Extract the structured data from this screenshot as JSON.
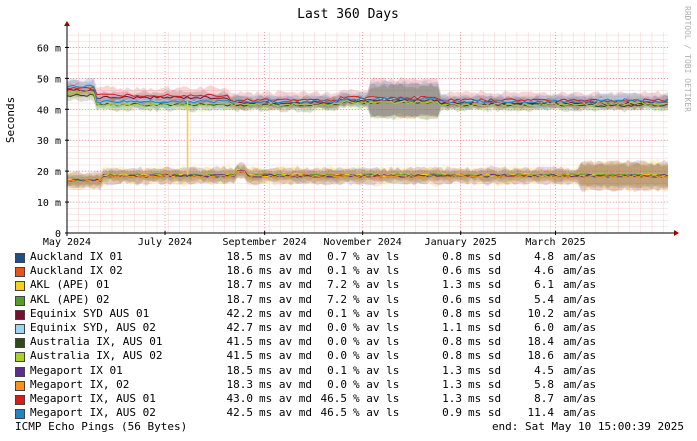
{
  "chart_data": {
    "type": "line",
    "title": "Last 360 Days",
    "ylabel": "Seconds",
    "xlabel": "",
    "ylim": [
      0,
      65
    ],
    "ytick_labels": [
      "0",
      "10 m",
      "20 m",
      "30 m",
      "40 m",
      "50 m",
      "60 m"
    ],
    "ytick_values": [
      0,
      10,
      20,
      30,
      40,
      50,
      60
    ],
    "xtick_labels": [
      "May 2024",
      "July 2024",
      "September 2024",
      "November 2024",
      "January 2025",
      "March 2025"
    ],
    "xtick_dates": [
      "2024-05-01",
      "2024-07-01",
      "2024-09-01",
      "2024-11-01",
      "2025-01-01",
      "2025-03-01"
    ],
    "x_range": [
      "2024-05-01",
      "2025-05-10"
    ],
    "grid": true,
    "watermark": "RRDTOOL / TOBI OETIKER",
    "series": [
      {
        "name": "Auckland IX 01",
        "color": "#1f4e8c",
        "median": "18.5",
        "loss": "0.7",
        "sd": "0.8",
        "am": "4.8"
      },
      {
        "name": "Auckland IX 02",
        "color": "#e8541c",
        "median": "18.6",
        "loss": "0.1",
        "sd": "0.6",
        "am": "4.6"
      },
      {
        "name": "AKL (APE) 01",
        "color": "#f2d21e",
        "median": "18.7",
        "loss": "7.2",
        "sd": "1.3",
        "am": "6.1"
      },
      {
        "name": "AKL (APE) 02",
        "color": "#5a9a2c",
        "median": "18.7",
        "loss": "7.2",
        "sd": "0.6",
        "am": "5.4"
      },
      {
        "name": "Equinix SYD AUS 01",
        "color": "#7a1030",
        "median": "42.2",
        "loss": "0.1",
        "sd": "0.8",
        "am": "10.2"
      },
      {
        "name": "Equinix SYD, AUS 02",
        "color": "#9fd3f2",
        "median": "42.7",
        "loss": "0.0",
        "sd": "1.1",
        "am": "6.0"
      },
      {
        "name": "Australia IX, AUS 01",
        "color": "#2e4a16",
        "median": "41.5",
        "loss": "0.0",
        "sd": "0.8",
        "am": "18.4"
      },
      {
        "name": "Australia IX, AUS 02",
        "color": "#a9cf2a",
        "median": "41.5",
        "loss": "0.0",
        "sd": "0.8",
        "am": "18.6"
      },
      {
        "name": "Megaport IX 01",
        "color": "#5b2d8e",
        "median": "18.5",
        "loss": "0.1",
        "sd": "1.3",
        "am": "4.5"
      },
      {
        "name": "Megaport IX, 02",
        "color": "#f2951c",
        "median": "18.3",
        "loss": "0.0",
        "sd": "1.3",
        "am": "5.8"
      },
      {
        "name": "Megaport IX, AUS 01",
        "color": "#d81c1c",
        "median": "43.0",
        "loss": "46.5",
        "sd": "1.3",
        "am": "8.7"
      },
      {
        "name": "Megaport IX, AUS 02",
        "color": "#1c86c8",
        "median": "42.5",
        "loss": "46.5",
        "sd": "0.9",
        "am": "11.4"
      }
    ],
    "units": {
      "median": "ms av md",
      "loss": "% av ls",
      "sd": "ms sd",
      "am": "am/as"
    }
  },
  "footer": {
    "left": "ICMP Echo Pings (56 Bytes)",
    "right": "end: Sat May 10 15:00:39 2025"
  }
}
